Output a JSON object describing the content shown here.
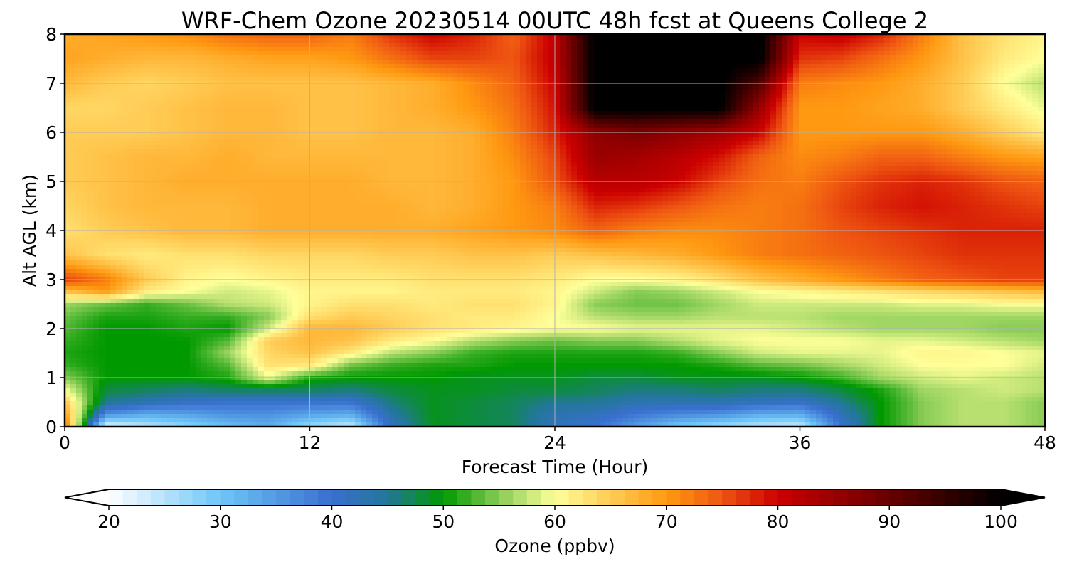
{
  "chart_data": {
    "type": "heatmap",
    "title": "WRF-Chem Ozone  20230514 00UTC 48h fcst at Queens College 2",
    "xlabel": "Forecast Time (Hour)",
    "ylabel": "Alt AGL (km)",
    "xlim": [
      0,
      48
    ],
    "ylim": [
      0,
      8
    ],
    "x_ticks": [
      0,
      12,
      24,
      36,
      48
    ],
    "y_ticks": [
      0,
      1,
      2,
      3,
      4,
      5,
      6,
      7,
      8
    ],
    "grid": true,
    "x_hours": [
      0,
      2,
      4,
      6,
      8,
      10,
      12,
      14,
      16,
      18,
      20,
      22,
      24,
      26,
      28,
      30,
      32,
      34,
      36,
      38,
      40,
      42,
      44,
      46,
      48
    ],
    "altitudes_km": [
      0,
      0.25,
      0.5,
      0.75,
      1,
      1.25,
      1.5,
      1.75,
      2,
      2.25,
      2.5,
      2.75,
      3,
      3.5,
      4,
      4.5,
      5,
      5.5,
      6,
      6.5,
      7,
      7.5,
      8
    ],
    "ozone_ppbv": [
      [
        74,
        22,
        25,
        28,
        31,
        33,
        27,
        24,
        42,
        49,
        48,
        47,
        42,
        40,
        35,
        30,
        27,
        25,
        24,
        40,
        50,
        55,
        57,
        57,
        55
      ],
      [
        70,
        36,
        33,
        34,
        36,
        36,
        34,
        33,
        44,
        49,
        48,
        47,
        43,
        42,
        39,
        37,
        36,
        33,
        33,
        42,
        50,
        55,
        57,
        57,
        55
      ],
      [
        66,
        45,
        43,
        41,
        40,
        40,
        40,
        40,
        46,
        49,
        48,
        47,
        45,
        45,
        43,
        43,
        43,
        42,
        41,
        45,
        50,
        55,
        57,
        57,
        55
      ],
      [
        60,
        48,
        47,
        46,
        47,
        47,
        47,
        46,
        48,
        49,
        49,
        48,
        48,
        47,
        46,
        46,
        47,
        46,
        46,
        48,
        51,
        56,
        57,
        58,
        57
      ],
      [
        55,
        50,
        50,
        50,
        51,
        59,
        51,
        50,
        50,
        50,
        49,
        49,
        49,
        48,
        48,
        49,
        49,
        49,
        50,
        52,
        56,
        58,
        59,
        58,
        57
      ],
      [
        52,
        50,
        50,
        50,
        53,
        63,
        62,
        54,
        52,
        51,
        51,
        50,
        50,
        50,
        50,
        50,
        51,
        53,
        54,
        56,
        58,
        60,
        60,
        60,
        58
      ],
      [
        51,
        50,
        50,
        50,
        56,
        64,
        66,
        62,
        57,
        55,
        52,
        51,
        51,
        51,
        51,
        52,
        55,
        58,
        59,
        59,
        59,
        61,
        61,
        60,
        59
      ],
      [
        52,
        50,
        50,
        50,
        53,
        65,
        67,
        66,
        62,
        60,
        57,
        55,
        54,
        55,
        55,
        57,
        59,
        60,
        60,
        60,
        59,
        59,
        58,
        57,
        56
      ],
      [
        53,
        50,
        50,
        51,
        50,
        58,
        67,
        67,
        65,
        63,
        62,
        61,
        60,
        60,
        59,
        59,
        59,
        59,
        58,
        57,
        56,
        56,
        56,
        55,
        55
      ],
      [
        54,
        51,
        51,
        52,
        52,
        55,
        63,
        65,
        64,
        63,
        62,
        62,
        60,
        57,
        56,
        56,
        57,
        57,
        57,
        56,
        56,
        56,
        56,
        56,
        56
      ],
      [
        56,
        54,
        52,
        54,
        57,
        58,
        61,
        63,
        63,
        62,
        63,
        63,
        61,
        55,
        54,
        54,
        56,
        58,
        58,
        58,
        58,
        59,
        59,
        60,
        60
      ],
      [
        66,
        70,
        62,
        60,
        58,
        59,
        61,
        61,
        61,
        62,
        62,
        62,
        61,
        58,
        55,
        56,
        58,
        60,
        61,
        62,
        63,
        64,
        65,
        66,
        67
      ],
      [
        76,
        72,
        65,
        61,
        60,
        61,
        62,
        62,
        62,
        63,
        63,
        63,
        62,
        60,
        60,
        61,
        63,
        66,
        68,
        70,
        72,
        74,
        75,
        76,
        76
      ],
      [
        66,
        63,
        62,
        63,
        63,
        64,
        64,
        64,
        65,
        65,
        66,
        66,
        65,
        66,
        67,
        68,
        70,
        72,
        73,
        74,
        75,
        76,
        77,
        77,
        77
      ],
      [
        63,
        65,
        66,
        67,
        67,
        68,
        68,
        68,
        68,
        68,
        69,
        70,
        71,
        74,
        72,
        71,
        71,
        72,
        73,
        75,
        76,
        77,
        78,
        78,
        78
      ],
      [
        64,
        66,
        67,
        67,
        67,
        68,
        68,
        68,
        68,
        67,
        68,
        70,
        72,
        78,
        77,
        75,
        73,
        72,
        73,
        76,
        78,
        79,
        78,
        77,
        76
      ],
      [
        65,
        66,
        67,
        68,
        68,
        68,
        68,
        68,
        67,
        67,
        68,
        70,
        75,
        82,
        82,
        80,
        76,
        73,
        72,
        75,
        77,
        78,
        77,
        75,
        74
      ],
      [
        65,
        66,
        67,
        67,
        68,
        67,
        67,
        67,
        67,
        67,
        68,
        71,
        76,
        85,
        84,
        82,
        79,
        74,
        71,
        72,
        74,
        74,
        72,
        70,
        69
      ],
      [
        65,
        65,
        65,
        66,
        67,
        67,
        66,
        66,
        67,
        67,
        68,
        72,
        78,
        86,
        88,
        86,
        84,
        80,
        70,
        70,
        70,
        70,
        68,
        65,
        62
      ],
      [
        64,
        64,
        65,
        66,
        67,
        67,
        66,
        66,
        67,
        68,
        70,
        73,
        79,
        101,
        101,
        101,
        101,
        85,
        70,
        70,
        69,
        68,
        65,
        62,
        59
      ],
      [
        67,
        65,
        64,
        65,
        66,
        66,
        66,
        66,
        67,
        68,
        71,
        74,
        80,
        101,
        101,
        101,
        101,
        92,
        72,
        71,
        70,
        68,
        65,
        60,
        57
      ],
      [
        69,
        68,
        67,
        67,
        68,
        69,
        69,
        70,
        73,
        76,
        76,
        75,
        81,
        101,
        101,
        101,
        101,
        101,
        77,
        76,
        73,
        70,
        66,
        62,
        60
      ],
      [
        68,
        69,
        70,
        71,
        73,
        74,
        74,
        72,
        77,
        80,
        78,
        74,
        81,
        101,
        101,
        101,
        101,
        101,
        80,
        81,
        78,
        72,
        66,
        63,
        61
      ]
    ],
    "colorbar": {
      "label": "Ozone  (ppbv)",
      "min": 20,
      "max": 100,
      "ticks": [
        20,
        30,
        40,
        50,
        60,
        70,
        80,
        90,
        100
      ],
      "extend": "both",
      "color_anchors": [
        [
          20,
          "#ffffff"
        ],
        [
          30,
          "#6ec6f8"
        ],
        [
          40,
          "#3a6fd0"
        ],
        [
          45,
          "#227799"
        ],
        [
          50,
          "#009900"
        ],
        [
          55,
          "#88cc55"
        ],
        [
          60,
          "#ffff99"
        ],
        [
          65,
          "#ffcc55"
        ],
        [
          70,
          "#ff9911"
        ],
        [
          75,
          "#ee5511"
        ],
        [
          80,
          "#cc0000"
        ],
        [
          85,
          "#990000"
        ],
        [
          90,
          "#660000"
        ],
        [
          95,
          "#330000"
        ],
        [
          100,
          "#000000"
        ]
      ]
    }
  }
}
